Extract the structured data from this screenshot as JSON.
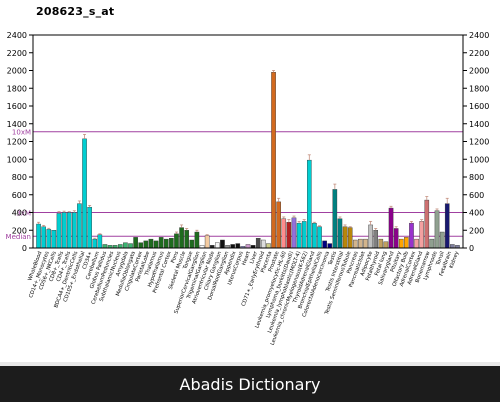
{
  "probe_id": "208623_s_at",
  "footer_text": "Abadis Dictionary",
  "chart_data": {
    "type": "bar",
    "title": "208623_s_at",
    "ylim": [
      0,
      2400
    ],
    "yticks": [
      0,
      200,
      400,
      600,
      800,
      1000,
      1200,
      1400,
      1600,
      1800,
      2000,
      2200,
      2400
    ],
    "reference_lines": [
      {
        "label": "10xM",
        "value": 1310,
        "color": "#a040a0"
      },
      {
        "label": "3xM",
        "value": 400,
        "color": "#a040a0"
      },
      {
        "label": "Median",
        "value": 133,
        "color": "#a040a0"
      }
    ],
    "x_labels_visible": [
      "WholeBlood",
      "CD14+_Monocytes",
      "CD56+_NKCells",
      "CD8+_Tcells",
      "CD4+_Tcells",
      "BDCA4+_DentriticCells",
      "CD105+_Endothelial",
      "CD34+",
      "Cerebellum",
      "Globus Pallidus",
      "CerebellumPeduncles",
      "SubthalamicNucleus",
      "Amygdala",
      "MedullaOblongata",
      "CingulateCortex",
      "ParietalLobe",
      "Thalamus",
      "Hypothalamus",
      "Prefrontal Cortex",
      "Pons",
      "Skeletal Muscle",
      "Tongue",
      "SuperiorCervicalGanglion",
      "TrigeminalGanglion",
      "Atrioventricular Node",
      "Ciliary Ganglion",
      "DorsalRootGanglion",
      "Appendix",
      "UterusCorpus",
      "Heart",
      "Liver",
      "CD71+_EarlyErythroid",
      "Placenta",
      "Prostate",
      "Leukemia_promyelocytic-HL-60",
      "Lymphoma_burkitts(Daudi)",
      "Leukemia_lymphoblastic(MOLT-4)",
      "Leukemia_chronicMyelogenous(K-562)",
      "ThyroidAdrenalGland",
      "BronchialEpithelialCells",
      "ColorectalAdenocarcinoma",
      "Testis",
      "Testis Interstitial",
      "Testis SeminiferousTubule",
      "Pancreas",
      "PancreaticIslet",
      "Adipocyte",
      "Fetalthyroid",
      "Fetal lung",
      "Salivarygland",
      "Pituitary",
      "Olfactory Bulb",
      "AdrenalCortex",
      "AdrenalGland",
      "Bonemarrow",
      "Lymphnode",
      "Tonsil",
      "Fetalbrain",
      "Kidney"
    ],
    "series": [
      {
        "values": [
          {
            "v": 270,
            "c": "#00ced1",
            "e": 20
          },
          {
            "v": 240,
            "c": "#00ced1",
            "e": 15
          },
          {
            "v": 210,
            "c": "#00ced1",
            "e": 12
          },
          {
            "v": 200,
            "c": "#00ced1",
            "e": 0
          },
          {
            "v": 390,
            "c": "#00ced1",
            "e": 20
          },
          {
            "v": 400,
            "c": "#00ced1",
            "e": 15
          },
          {
            "v": 400,
            "c": "#00ced1",
            "e": 10
          },
          {
            "v": 400,
            "c": "#00ced1",
            "e": 20
          },
          {
            "v": 500,
            "c": "#00ced1",
            "e": 30
          },
          {
            "v": 1230,
            "c": "#00ced1",
            "e": 50
          },
          {
            "v": 460,
            "c": "#00ced1",
            "e": 20
          },
          {
            "v": 100,
            "c": "#00ced1",
            "e": 10
          },
          {
            "v": 150,
            "c": "#00ced1",
            "e": 10
          },
          {
            "v": 40,
            "c": "#3cb371",
            "e": 0
          },
          {
            "v": 30,
            "c": "#3cb371",
            "e": 0
          },
          {
            "v": 30,
            "c": "#3cb371",
            "e": 0
          },
          {
            "v": 40,
            "c": "#3cb371",
            "e": 0
          },
          {
            "v": 60,
            "c": "#3cb371",
            "e": 0
          },
          {
            "v": 50,
            "c": "#3cb371",
            "e": 0
          },
          {
            "v": 120,
            "c": "#1e6b1e",
            "e": 0
          },
          {
            "v": 60,
            "c": "#1e6b1e",
            "e": 0
          },
          {
            "v": 80,
            "c": "#1e6b1e",
            "e": 0
          },
          {
            "v": 100,
            "c": "#1e6b1e",
            "e": 0
          },
          {
            "v": 80,
            "c": "#1e6b1e",
            "e": 0
          },
          {
            "v": 120,
            "c": "#1e6b1e",
            "e": 0
          },
          {
            "v": 100,
            "c": "#1e6b1e",
            "e": 0
          },
          {
            "v": 110,
            "c": "#1e6b1e",
            "e": 0
          },
          {
            "v": 160,
            "c": "#1e6b1e",
            "e": 20
          },
          {
            "v": 230,
            "c": "#1e6b1e",
            "e": 30
          },
          {
            "v": 200,
            "c": "#1e6b1e",
            "e": 20
          },
          {
            "v": 90,
            "c": "#1e6b1e",
            "e": 0
          },
          {
            "v": 180,
            "c": "#1e6b1e",
            "e": 20
          },
          {
            "v": 30,
            "c": "#ffffff",
            "e": 0
          },
          {
            "v": 140,
            "c": "#f4cba0",
            "e": 10
          },
          {
            "v": 30,
            "c": "#222222",
            "e": 0
          },
          {
            "v": 60,
            "c": "#f4f4f4",
            "e": 0
          },
          {
            "v": 90,
            "c": "#111111",
            "e": 0
          },
          {
            "v": 30,
            "c": "#999999",
            "e": 0
          },
          {
            "v": 40,
            "c": "#111111",
            "e": 0
          },
          {
            "v": 50,
            "c": "#111111",
            "e": 0
          },
          {
            "v": 20,
            "c": "#9999cc",
            "e": 0
          },
          {
            "v": 40,
            "c": "#cc99cc",
            "e": 0
          },
          {
            "v": 30,
            "c": "#111111",
            "e": 0
          },
          {
            "v": 110,
            "c": "#4b4b4b",
            "e": 0
          },
          {
            "v": 90,
            "c": "#dddddd",
            "e": 0
          },
          {
            "v": 50,
            "c": "#cccc88",
            "e": 0
          },
          {
            "v": 1980,
            "c": "#d2691e",
            "e": 20
          },
          {
            "v": 520,
            "c": "#d2691e",
            "e": 40
          },
          {
            "v": 330,
            "c": "#ff8c8c",
            "e": 20
          },
          {
            "v": 290,
            "c": "#b22222",
            "e": 30
          },
          {
            "v": 340,
            "c": "#9370db",
            "e": 20
          },
          {
            "v": 280,
            "c": "#00ced1",
            "e": 20
          },
          {
            "v": 300,
            "c": "#00ced1",
            "e": 20
          },
          {
            "v": 990,
            "c": "#00ced1",
            "e": 60
          },
          {
            "v": 280,
            "c": "#00ced1",
            "e": 10
          },
          {
            "v": 240,
            "c": "#00ced1",
            "e": 10
          },
          {
            "v": 80,
            "c": "#000080",
            "e": 0
          },
          {
            "v": 50,
            "c": "#000080",
            "e": 0
          },
          {
            "v": 660,
            "c": "#008080",
            "e": 60
          },
          {
            "v": 330,
            "c": "#008080",
            "e": 20
          },
          {
            "v": 240,
            "c": "#b8860b",
            "e": 20
          },
          {
            "v": 230,
            "c": "#b8860b",
            "e": 10
          },
          {
            "v": 90,
            "c": "#d2b48c",
            "e": 0
          },
          {
            "v": 100,
            "c": "#d2b48c",
            "e": 0
          },
          {
            "v": 100,
            "c": "#d2b48c",
            "e": 0
          },
          {
            "v": 260,
            "c": "#c0c0c0",
            "e": 40
          },
          {
            "v": 200,
            "c": "#808080",
            "e": 20
          },
          {
            "v": 100,
            "c": "#c0a060",
            "e": 0
          },
          {
            "v": 70,
            "c": "#c0a060",
            "e": 0
          },
          {
            "v": 450,
            "c": "#8b008b",
            "e": 20
          },
          {
            "v": 220,
            "c": "#8b008b",
            "e": 20
          },
          {
            "v": 100,
            "c": "#ffa500",
            "e": 0
          },
          {
            "v": 120,
            "c": "#ffa500",
            "e": 0
          },
          {
            "v": 280,
            "c": "#9932cc",
            "e": 20
          },
          {
            "v": 100,
            "c": "#f4a0a0",
            "e": 0
          },
          {
            "v": 300,
            "c": "#f4a0a0",
            "e": 20
          },
          {
            "v": 540,
            "c": "#cd7070",
            "e": 40
          },
          {
            "v": 100,
            "c": "#90a090",
            "e": 0
          },
          {
            "v": 420,
            "c": "#90a090",
            "e": 20
          },
          {
            "v": 180,
            "c": "#90a090",
            "e": 0
          },
          {
            "v": 500,
            "c": "#191970",
            "e": 60
          },
          {
            "v": 40,
            "c": "#8080a0",
            "e": 0
          },
          {
            "v": 30,
            "c": "#8080a0",
            "e": 0
          }
        ]
      }
    ]
  }
}
